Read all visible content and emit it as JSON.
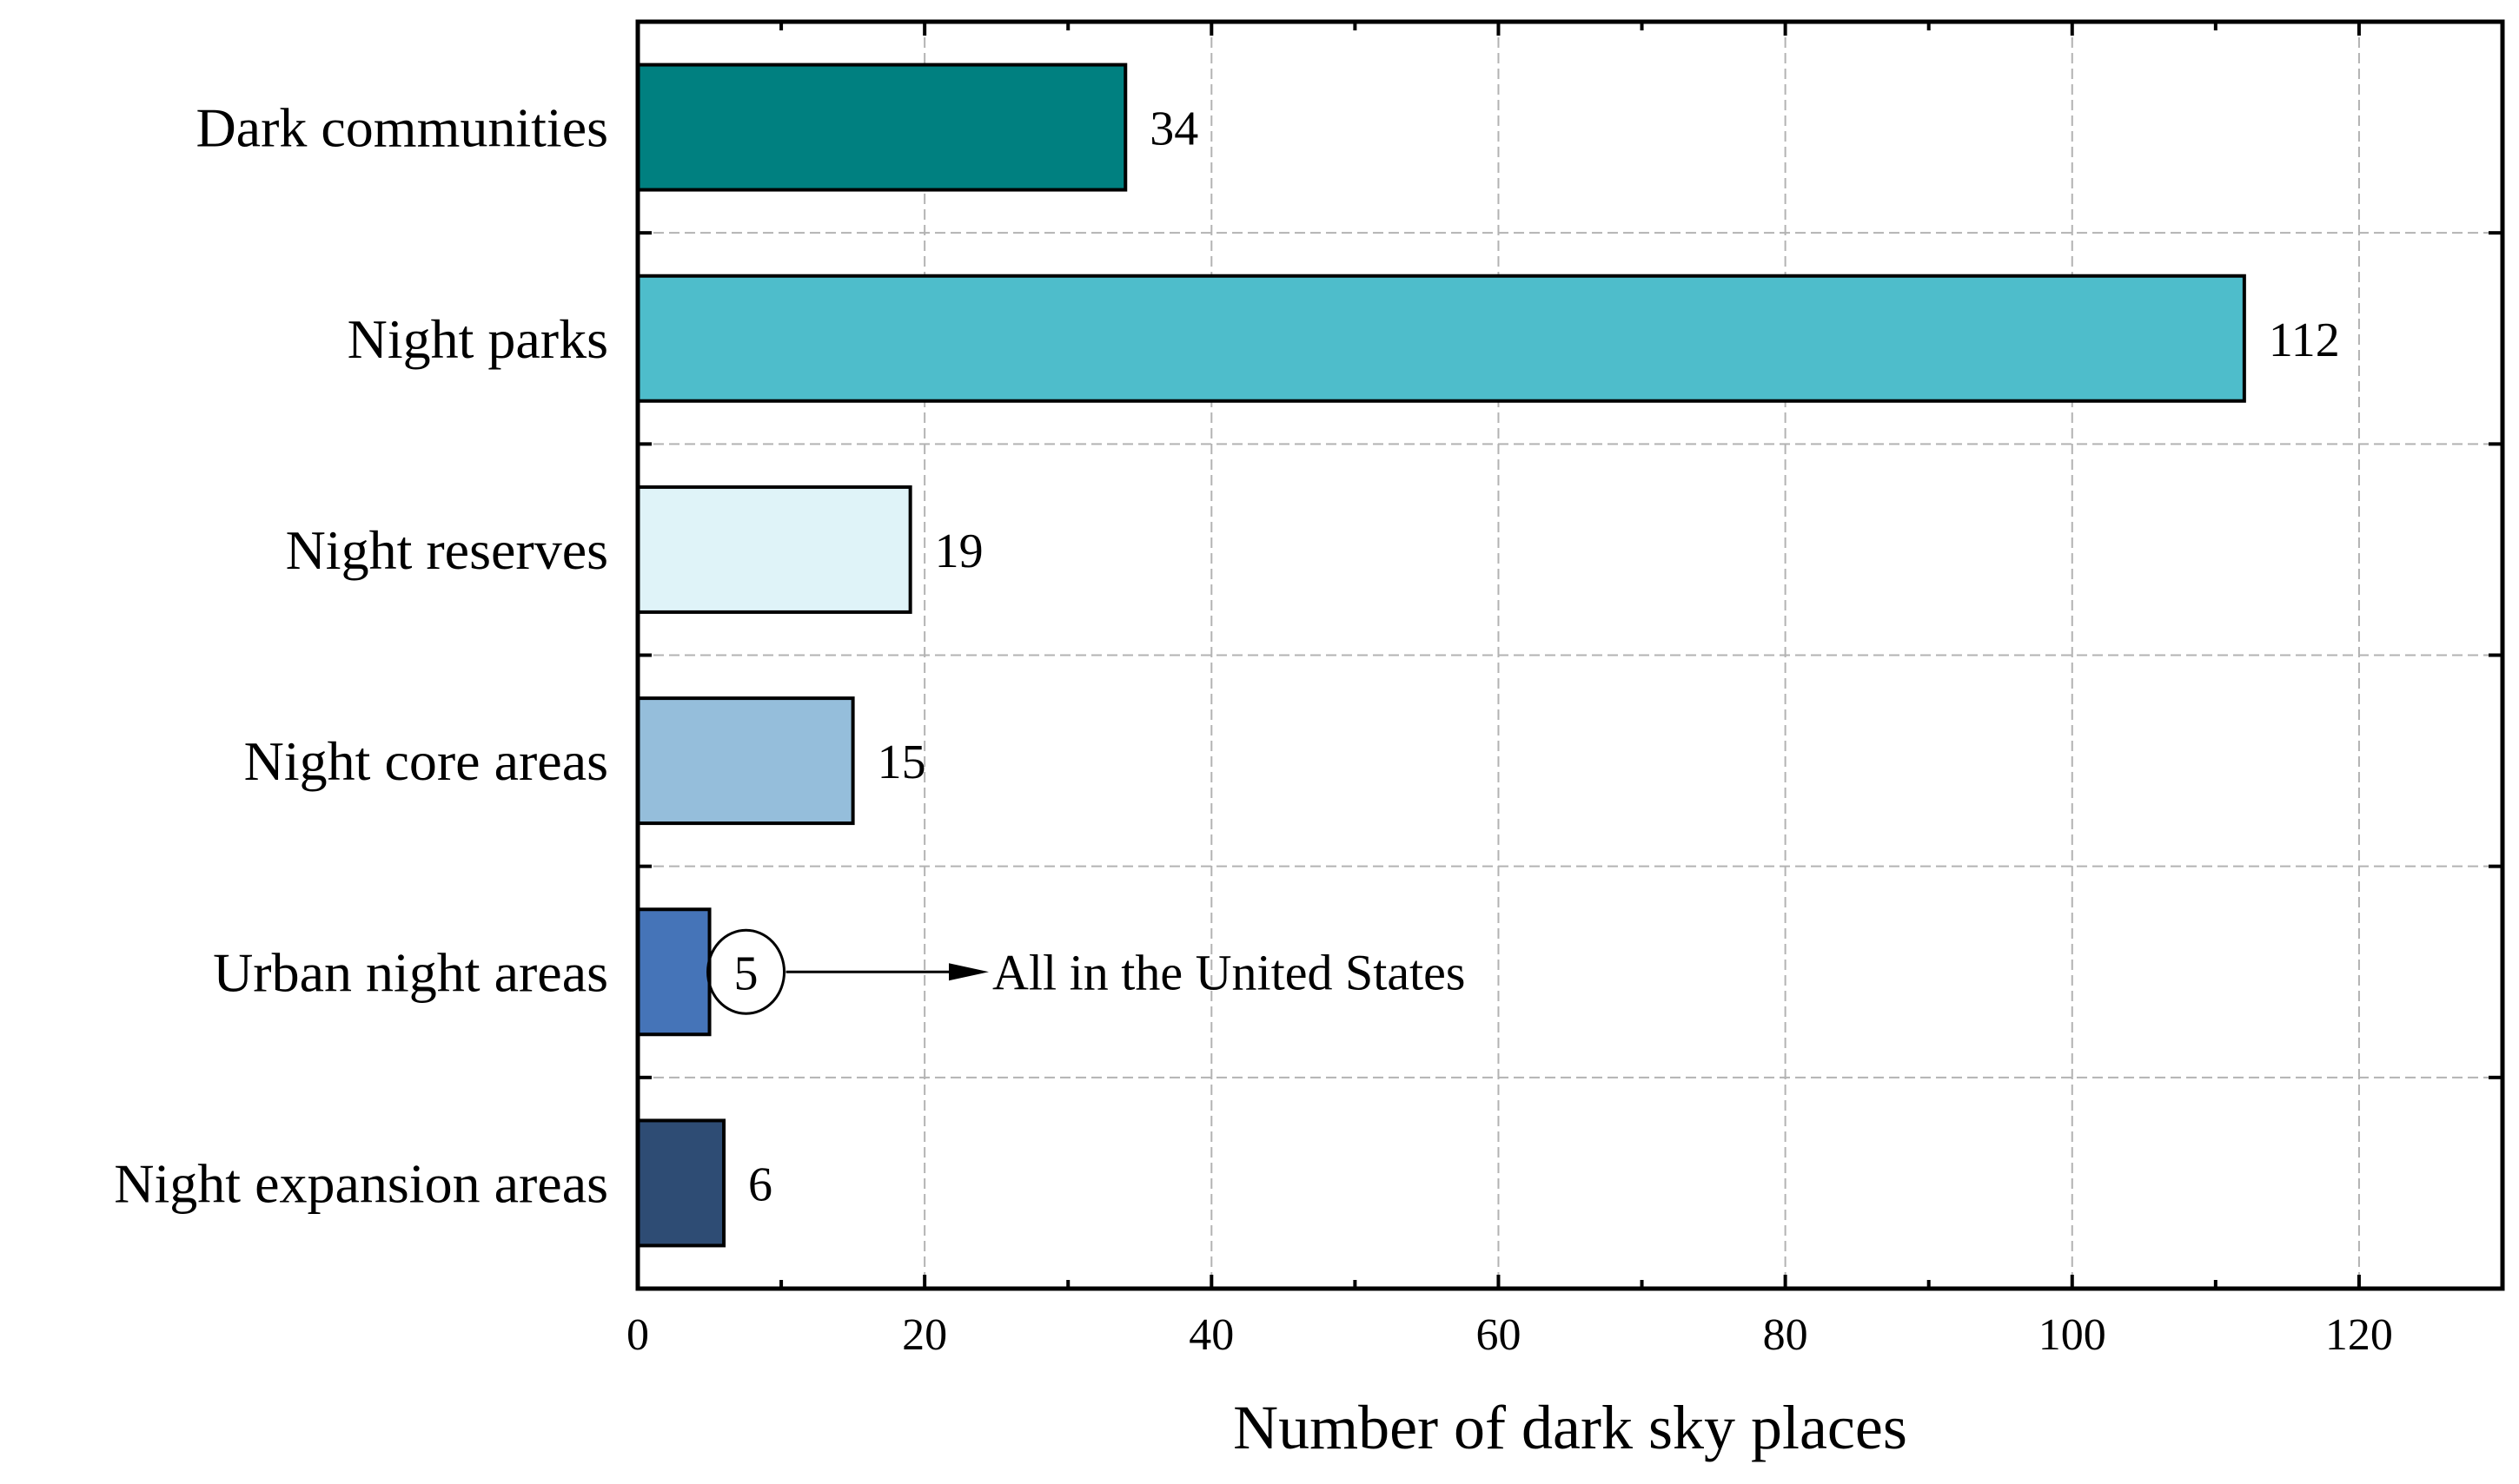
{
  "chart_data": {
    "type": "bar",
    "orientation": "horizontal",
    "categories": [
      "Dark communities",
      "Night parks",
      "Night reserves",
      "Night core areas",
      "Urban night areas",
      "Night expansion areas"
    ],
    "values": [
      34,
      112,
      19,
      15,
      5,
      6
    ],
    "value_labels": [
      "34",
      "112",
      "19",
      "15",
      "5",
      "6"
    ],
    "bar_colors": [
      "#008080",
      "#4ebdcb",
      "#dff3f8",
      "#95bedb",
      "#4574b8",
      "#2e4c74"
    ],
    "xlabel": "Number of dark sky places",
    "ylabel": "",
    "xlim": [
      0,
      130
    ],
    "xticks": [
      0,
      20,
      40,
      60,
      80,
      100,
      120
    ],
    "xtick_labels": [
      "0",
      "20",
      "40",
      "60",
      "80",
      "100",
      "120"
    ],
    "grid": true,
    "annotation": {
      "category": "Urban night areas",
      "text": "All in the United States",
      "circled_label": "5"
    }
  }
}
